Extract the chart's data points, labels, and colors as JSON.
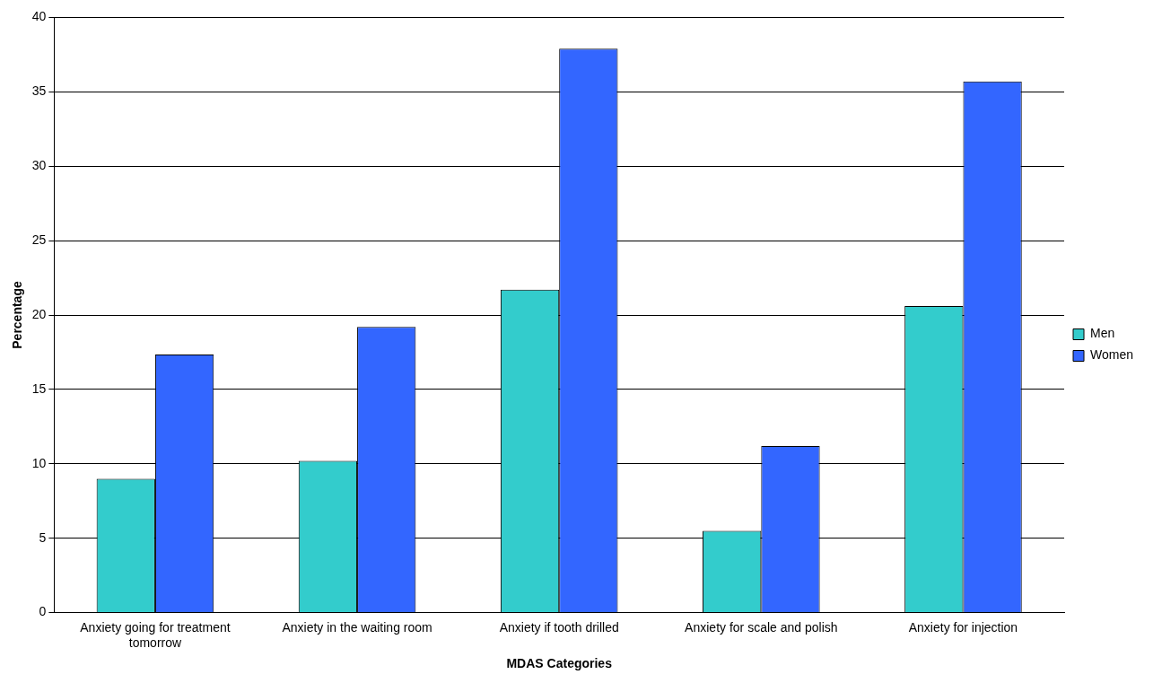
{
  "chart_data": {
    "type": "bar",
    "xlabel": "MDAS Categories",
    "ylabel": "Percentage",
    "categories": [
      "Anxiety going for treatment tomorrow",
      "Anxiety in the waiting room",
      "Anxiety if tooth drilled",
      "Anxiety for scale and polish",
      "Anxiety for injection"
    ],
    "series": [
      {
        "name": "Men",
        "color": "#33cccc",
        "values": [
          9.0,
          10.2,
          21.7,
          5.5,
          20.6
        ]
      },
      {
        "name": "Women",
        "color": "#3366ff",
        "values": [
          17.35,
          19.2,
          37.9,
          11.2,
          35.7
        ]
      }
    ],
    "ylim": [
      0,
      40
    ],
    "yticks": [
      0,
      5,
      10,
      15,
      20,
      25,
      30,
      35,
      40
    ],
    "grid": "y",
    "legend": "right"
  }
}
